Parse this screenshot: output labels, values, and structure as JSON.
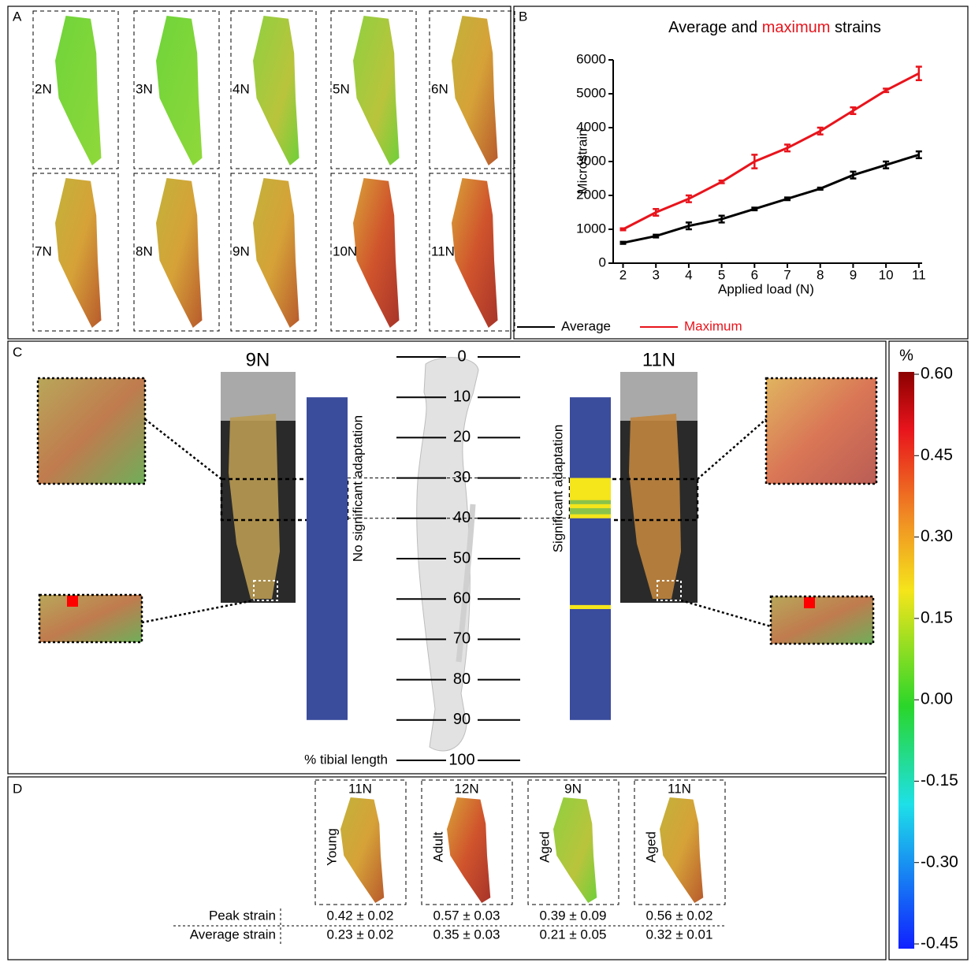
{
  "panel_a": {
    "label": "A",
    "loads": [
      "2N",
      "3N",
      "4N",
      "5N",
      "6N",
      "7N",
      "8N",
      "9N",
      "10N",
      "11N"
    ]
  },
  "chart_data": {
    "type": "line",
    "label": "B",
    "title_start": "Average and",
    "title_highlight": "maximum",
    "title_end": "strains",
    "x_label": "Applied load (N)",
    "y_label": "Microstrain",
    "x": [
      2,
      3,
      4,
      5,
      6,
      7,
      8,
      9,
      10,
      11
    ],
    "xlim": [
      1.7,
      11.1
    ],
    "xticks": [
      2,
      3,
      4,
      5,
      6,
      7,
      8,
      9,
      10,
      11
    ],
    "ylim": [
      0,
      6000
    ],
    "yticks": [
      0,
      1000,
      2000,
      3000,
      4000,
      5000,
      6000
    ],
    "series": [
      {
        "name": "Average",
        "color": "#000000",
        "values": [
          600,
          800,
          1100,
          1300,
          1600,
          1900,
          2200,
          2600,
          2900,
          3200
        ],
        "errors": [
          30,
          40,
          100,
          100,
          40,
          40,
          30,
          100,
          100,
          100
        ]
      },
      {
        "name": "Maximum",
        "color": "#e8141c",
        "values": [
          1000,
          1500,
          1900,
          2400,
          3000,
          3400,
          3900,
          4500,
          5100,
          5600
        ],
        "errors": [
          30,
          100,
          100,
          40,
          200,
          100,
          100,
          100,
          50,
          200
        ]
      }
    ]
  },
  "panel_c": {
    "label": "C",
    "left_load": "9N",
    "right_load": "11N",
    "left_bar": "No significant adaptation",
    "right_bar": "Significant adaptation",
    "scale_label": "% tibial length",
    "scale_ticks": [
      0,
      10,
      20,
      30,
      40,
      50,
      60,
      70,
      80,
      90,
      100
    ],
    "bar_range": [
      10,
      90
    ],
    "bands": [
      {
        "start": 30,
        "end": 40,
        "color": "#f5e51b"
      },
      {
        "start": 35.5,
        "end": 36.5,
        "color": "#8bc34a"
      },
      {
        "start": 37.5,
        "end": 39,
        "color": "#8bc34a"
      },
      {
        "start": 61.5,
        "end": 62.5,
        "color": "#f5e51b"
      }
    ]
  },
  "colorbar": {
    "unit": "%",
    "lim": [
      -0.45,
      0.6
    ],
    "ticks": [
      {
        "value": 0.6,
        "label": "0.60"
      },
      {
        "value": 0.45,
        "label": "0.45"
      },
      {
        "value": 0.3,
        "label": "0.30"
      },
      {
        "value": 0.15,
        "label": "0.15"
      },
      {
        "value": 0,
        "label": "0.00"
      },
      {
        "value": -0.15,
        "label": "-0.15"
      },
      {
        "value": -0.3,
        "label": "-0.30"
      },
      {
        "value": -0.45,
        "label": "-0.45"
      }
    ]
  },
  "panel_d": {
    "label": "D",
    "row_labels": [
      "Peak strain",
      "Average strain"
    ],
    "samples": [
      {
        "load": "11N",
        "group": "Young",
        "peak": "0.42 ± 0.02",
        "average": "0.23 ± 0.02"
      },
      {
        "load": "12N",
        "group": "Adult",
        "peak": "0.57 ± 0.03",
        "average": "0.35 ± 0.03"
      },
      {
        "load": "9N",
        "group": "Aged",
        "peak": "0.39 ± 0.09",
        "average": "0.21 ± 0.05"
      },
      {
        "load": "11N",
        "group": "Aged",
        "peak": "0.56 ± 0.02",
        "average": "0.32 ± 0.01"
      }
    ]
  }
}
